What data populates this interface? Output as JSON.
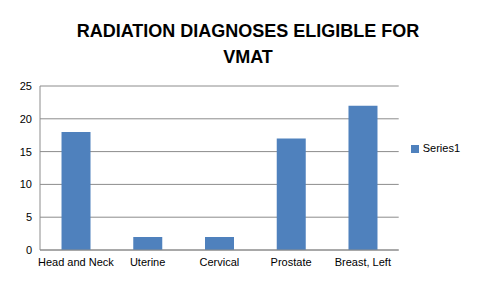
{
  "chart_data": {
    "type": "bar",
    "title": "RADIATION DIAGNOSES ELIGIBLE FOR VMAT",
    "categories": [
      "Head and Neck",
      "Uterine",
      "Cervical",
      "Prostate",
      "Breast, Left"
    ],
    "series": [
      {
        "name": "Series1",
        "color": "#4f81bd",
        "values": [
          18,
          2,
          2,
          17,
          22
        ]
      }
    ],
    "ylim": [
      0,
      25
    ],
    "yticks": [
      0,
      5,
      10,
      15,
      20,
      25
    ],
    "grid": true,
    "legend": "right"
  }
}
